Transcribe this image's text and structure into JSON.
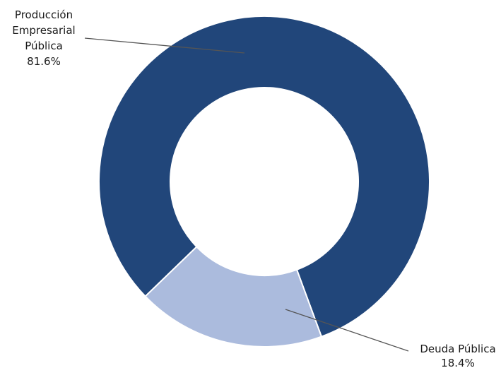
{
  "chart_data": {
    "type": "pie",
    "variant": "donut",
    "slices": [
      {
        "name": "Producción Empresarial Pública",
        "label_lines": [
          "Producción",
          "Empresarial",
          "Pública"
        ],
        "value": 81.6,
        "value_label": "81.6%",
        "color": "#21467a"
      },
      {
        "name": "Deuda Pública",
        "label_lines": [
          "Deuda Pública"
        ],
        "value": 18.4,
        "value_label": "18.4%",
        "color": "#abbbdd"
      }
    ],
    "title": "",
    "legend": "none"
  }
}
